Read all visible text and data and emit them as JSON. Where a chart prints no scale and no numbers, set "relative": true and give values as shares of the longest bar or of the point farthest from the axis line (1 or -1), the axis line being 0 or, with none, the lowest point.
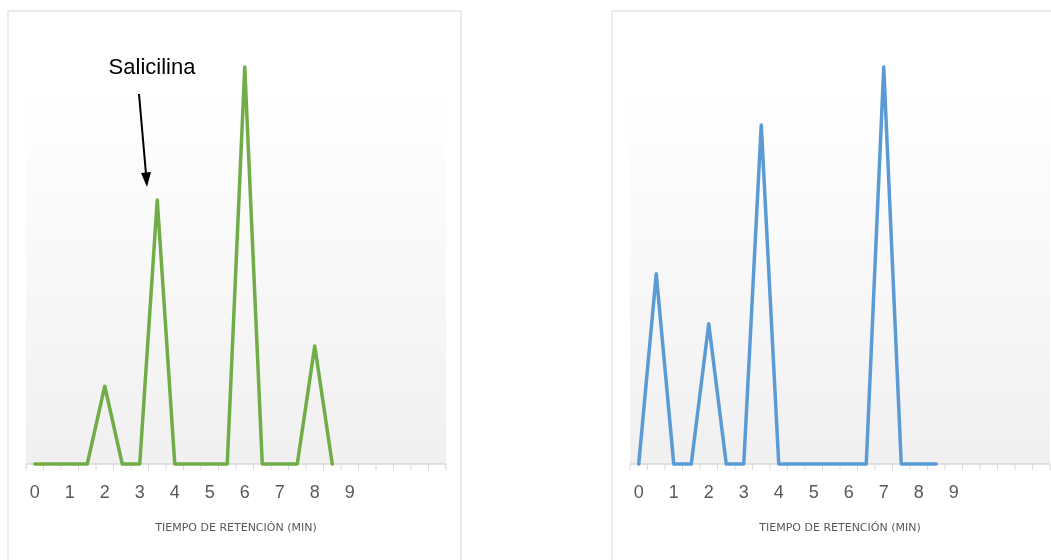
{
  "chart_data": [
    {
      "type": "line",
      "relative": true,
      "xlabel": "TIEMPO DE RETENCIÓN (MIN)",
      "xlim": [
        -0.25,
        11.75
      ],
      "xticks": [
        0,
        1,
        2,
        3,
        4,
        5,
        6,
        7,
        8,
        9
      ],
      "grid": false,
      "marker": "none",
      "annotations": [
        "Salicilina"
      ],
      "series": [
        {
          "color": "#70ad47",
          "x": [
            0,
            0.5,
            1,
            1.5,
            2,
            2.5,
            3,
            3.5,
            4,
            4.5,
            5,
            5.5,
            6,
            6.5,
            7,
            7.5,
            8,
            8.5
          ],
          "values": [
            0,
            0,
            0,
            0,
            0.196,
            0,
            0,
            0.665,
            0,
            0,
            0,
            0,
            1,
            0,
            0,
            0,
            0.297,
            0
          ]
        }
      ]
    },
    {
      "type": "line",
      "relative": true,
      "xlabel": "TIEMPO DE RETENCIÓN (MIN)",
      "xlim": [
        -0.25,
        11.75
      ],
      "xticks": [
        0,
        1,
        2,
        3,
        4,
        5,
        6,
        7,
        8,
        9
      ],
      "grid": false,
      "marker": "none",
      "series": [
        {
          "color": "#5b9bd5",
          "x": [
            0,
            0.5,
            1,
            1.5,
            2,
            2.5,
            3,
            3.5,
            4,
            4.5,
            5,
            5.5,
            6,
            6.5,
            7,
            7.5,
            8,
            8.5
          ],
          "values": [
            0,
            0.479,
            0,
            0,
            0.353,
            0,
            0,
            0.854,
            0,
            0,
            0,
            0,
            0,
            0,
            1,
            0,
            0,
            0
          ]
        }
      ]
    }
  ]
}
